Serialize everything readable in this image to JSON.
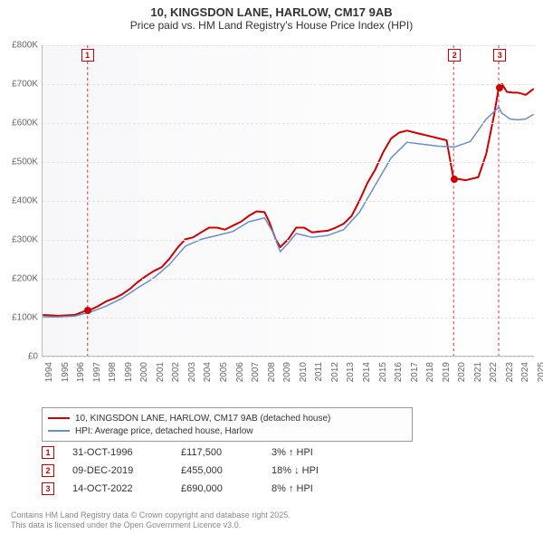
{
  "title_line1": "10, KINGSDON LANE, HARLOW, CM17 9AB",
  "title_line2": "Price paid vs. HM Land Registry's House Price Index (HPI)",
  "chart": {
    "type": "line",
    "background_color": "#ffffff",
    "grid_color": "#e4e4e4",
    "axis_color": "#bbbbbb",
    "label_fontsize": 10,
    "label_color": "#666666",
    "y": {
      "min": 0,
      "max": 800,
      "ticks": [
        0,
        100,
        200,
        300,
        400,
        500,
        600,
        700,
        800
      ],
      "tick_labels": [
        "£0",
        "£100K",
        "£200K",
        "£300K",
        "£400K",
        "£500K",
        "£600K",
        "£700K",
        "£800K"
      ]
    },
    "x": {
      "min": 1994,
      "max": 2025,
      "ticks": [
        1994,
        1995,
        1996,
        1997,
        1998,
        1999,
        2000,
        2001,
        2002,
        2003,
        2004,
        2005,
        2006,
        2007,
        2008,
        2009,
        2010,
        2011,
        2012,
        2013,
        2014,
        2015,
        2016,
        2017,
        2018,
        2019,
        2020,
        2021,
        2022,
        2023,
        2024,
        2025
      ]
    },
    "series": [
      {
        "name": "10, KINGSDON LANE, HARLOW, CM17 9AB (detached house)",
        "color": "#cc0000",
        "width": 2,
        "points": [
          [
            1994.0,
            105
          ],
          [
            1995.0,
            103
          ],
          [
            1996.0,
            105
          ],
          [
            1996.8,
            117
          ],
          [
            1997.0,
            118
          ],
          [
            1997.5,
            128
          ],
          [
            1998.0,
            140
          ],
          [
            1998.5,
            148
          ],
          [
            1999.0,
            158
          ],
          [
            1999.5,
            172
          ],
          [
            2000.0,
            190
          ],
          [
            2000.5,
            205
          ],
          [
            2001.0,
            218
          ],
          [
            2001.5,
            228
          ],
          [
            2002.0,
            250
          ],
          [
            2002.5,
            278
          ],
          [
            2003.0,
            300
          ],
          [
            2003.5,
            305
          ],
          [
            2004.0,
            318
          ],
          [
            2004.5,
            330
          ],
          [
            2005.0,
            330
          ],
          [
            2005.5,
            325
          ],
          [
            2006.0,
            335
          ],
          [
            2006.5,
            345
          ],
          [
            2007.0,
            360
          ],
          [
            2007.5,
            372
          ],
          [
            2008.0,
            370
          ],
          [
            2008.3,
            345
          ],
          [
            2008.7,
            300
          ],
          [
            2009.0,
            280
          ],
          [
            2009.5,
            300
          ],
          [
            2010.0,
            330
          ],
          [
            2010.5,
            330
          ],
          [
            2011.0,
            318
          ],
          [
            2011.5,
            320
          ],
          [
            2012.0,
            322
          ],
          [
            2012.5,
            330
          ],
          [
            2013.0,
            340
          ],
          [
            2013.5,
            360
          ],
          [
            2014.0,
            400
          ],
          [
            2014.5,
            445
          ],
          [
            2015.0,
            480
          ],
          [
            2015.5,
            525
          ],
          [
            2016.0,
            560
          ],
          [
            2016.5,
            575
          ],
          [
            2017.0,
            580
          ],
          [
            2017.5,
            575
          ],
          [
            2018.0,
            570
          ],
          [
            2018.5,
            565
          ],
          [
            2019.0,
            560
          ],
          [
            2019.5,
            555
          ],
          [
            2019.94,
            455
          ],
          [
            2020.3,
            455
          ],
          [
            2020.7,
            452
          ],
          [
            2021.0,
            455
          ],
          [
            2021.5,
            460
          ],
          [
            2022.0,
            520
          ],
          [
            2022.5,
            620
          ],
          [
            2022.79,
            690
          ],
          [
            2023.0,
            700
          ],
          [
            2023.3,
            680
          ],
          [
            2023.7,
            678
          ],
          [
            2024.0,
            678
          ],
          [
            2024.5,
            672
          ],
          [
            2025.0,
            688
          ]
        ]
      },
      {
        "name": "HPI: Average price, detached house, Harlow",
        "color": "#6a8fc5",
        "width": 1.5,
        "points": [
          [
            1994.0,
            100
          ],
          [
            1995.0,
            100
          ],
          [
            1996.0,
            102
          ],
          [
            1997.0,
            112
          ],
          [
            1998.0,
            128
          ],
          [
            1999.0,
            148
          ],
          [
            2000.0,
            175
          ],
          [
            2001.0,
            200
          ],
          [
            2002.0,
            235
          ],
          [
            2003.0,
            282
          ],
          [
            2004.0,
            300
          ],
          [
            2005.0,
            310
          ],
          [
            2006.0,
            320
          ],
          [
            2007.0,
            345
          ],
          [
            2008.0,
            355
          ],
          [
            2008.5,
            320
          ],
          [
            2009.0,
            268
          ],
          [
            2009.5,
            290
          ],
          [
            2010.0,
            315
          ],
          [
            2011.0,
            305
          ],
          [
            2012.0,
            310
          ],
          [
            2013.0,
            325
          ],
          [
            2014.0,
            370
          ],
          [
            2015.0,
            440
          ],
          [
            2016.0,
            510
          ],
          [
            2017.0,
            550
          ],
          [
            2018.0,
            545
          ],
          [
            2019.0,
            540
          ],
          [
            2020.0,
            538
          ],
          [
            2021.0,
            552
          ],
          [
            2022.0,
            610
          ],
          [
            2022.8,
            640
          ],
          [
            2023.0,
            625
          ],
          [
            2023.5,
            610
          ],
          [
            2024.0,
            608
          ],
          [
            2024.5,
            610
          ],
          [
            2025.0,
            622
          ]
        ]
      }
    ],
    "sale_markers": [
      {
        "n": "1",
        "year": 1996.83,
        "value": 117.5,
        "box_y_top": true
      },
      {
        "n": "2",
        "year": 2019.94,
        "value": 455,
        "box_y_top": true
      },
      {
        "n": "3",
        "year": 2022.79,
        "value": 690,
        "box_y_top": true
      }
    ]
  },
  "legend": {
    "rows": [
      {
        "color": "#cc0000",
        "label": "10, KINGSDON LANE, HARLOW, CM17 9AB (detached house)"
      },
      {
        "color": "#6a8fc5",
        "label": "HPI: Average price, detached house, Harlow"
      }
    ]
  },
  "sales_table": {
    "rows": [
      {
        "n": "1",
        "date": "31-OCT-1996",
        "price": "£117,500",
        "delta": "3% ↑ HPI"
      },
      {
        "n": "2",
        "date": "09-DEC-2019",
        "price": "£455,000",
        "delta": "18% ↓ HPI"
      },
      {
        "n": "3",
        "date": "14-OCT-2022",
        "price": "£690,000",
        "delta": "8% ↑ HPI"
      }
    ]
  },
  "footer_line1": "Contains HM Land Registry data © Crown copyright and database right 2025.",
  "footer_line2": "This data is licensed under the Open Government Licence v3.0."
}
